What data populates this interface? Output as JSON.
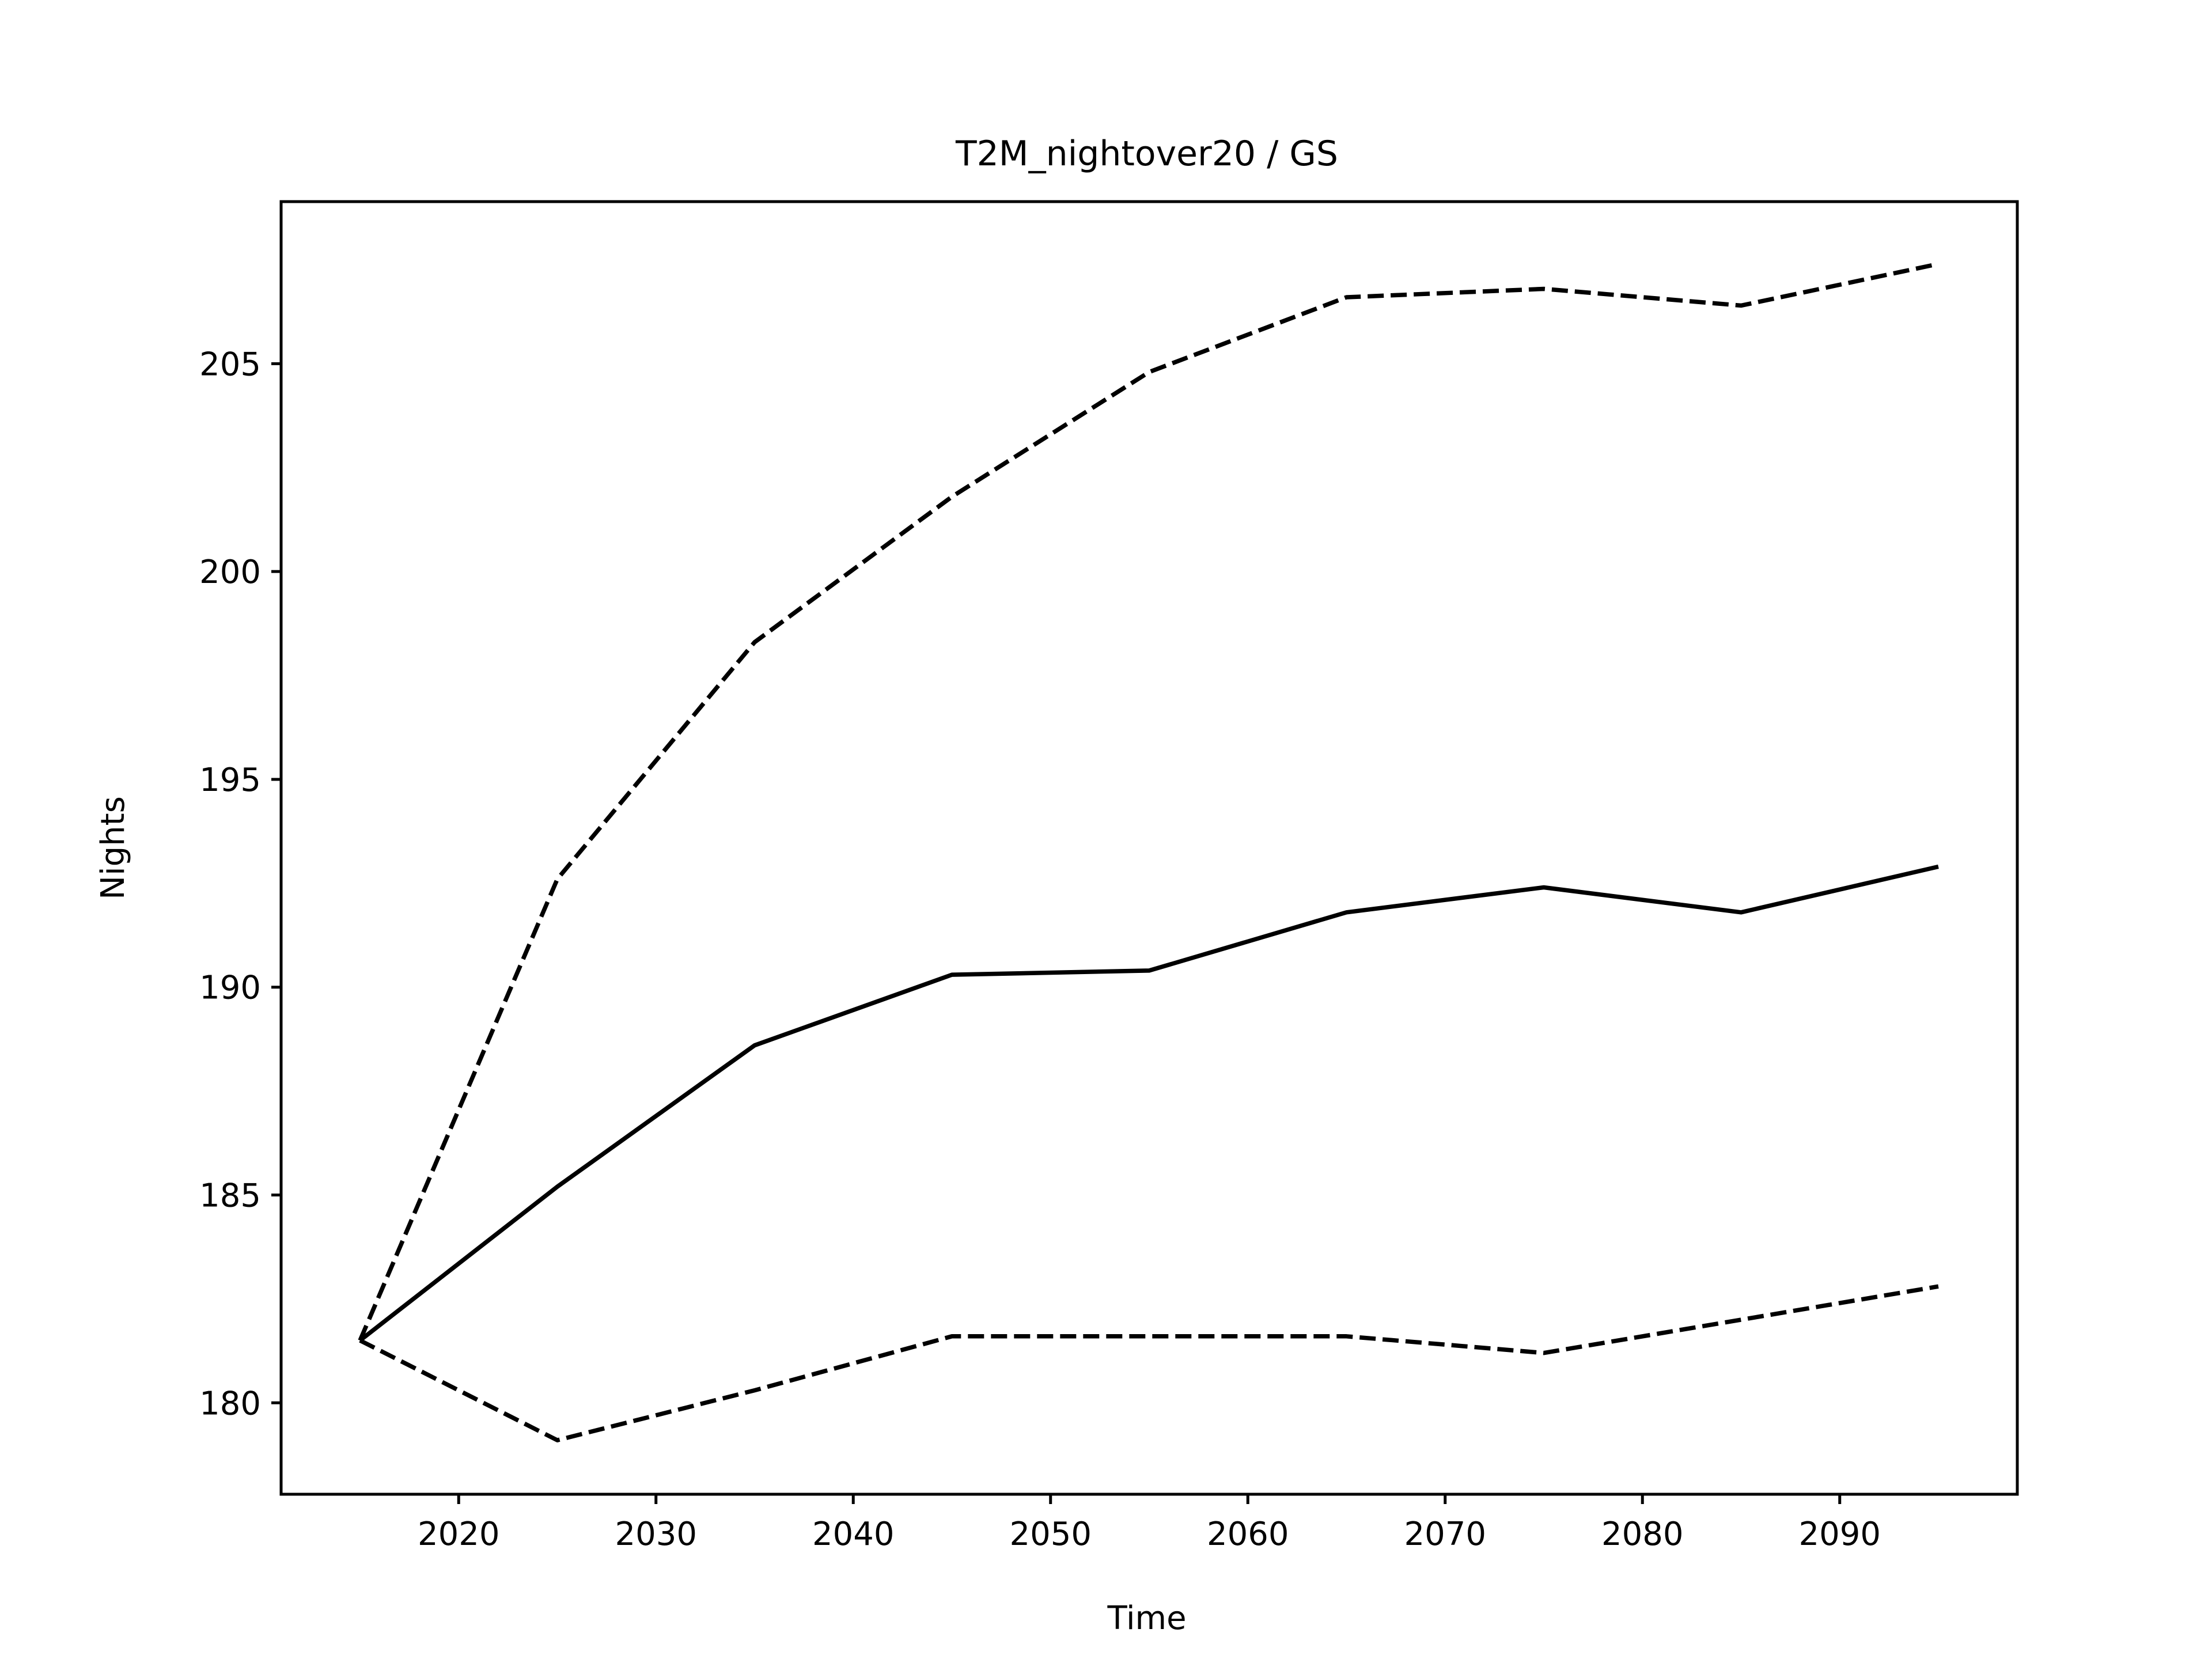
{
  "chart_data": {
    "type": "line",
    "title": "T2M_nightover20 / GS",
    "xlabel": "Time",
    "ylabel": "Nights",
    "x": [
      2015,
      2025,
      2035,
      2045,
      2055,
      2065,
      2075,
      2085,
      2095
    ],
    "xlim": [
      2011,
      2099
    ],
    "ylim": [
      177.8,
      208.9
    ],
    "xticks": [
      2020,
      2030,
      2040,
      2050,
      2060,
      2070,
      2080,
      2090
    ],
    "yticks": [
      180,
      185,
      190,
      195,
      200,
      205
    ],
    "grid": false,
    "legend": false,
    "series": [
      {
        "style": "solid",
        "color": "#000000",
        "values": [
          181.5,
          185.2,
          188.6,
          190.3,
          190.4,
          191.8,
          192.4,
          191.8,
          192.9
        ]
      },
      {
        "style": "dashed",
        "color": "#000000",
        "values": [
          181.5,
          192.6,
          198.3,
          201.8,
          204.8,
          206.6,
          206.8,
          206.4,
          207.4
        ]
      },
      {
        "style": "dashed",
        "color": "#000000",
        "values": [
          181.5,
          179.1,
          180.3,
          181.6,
          181.6,
          181.6,
          181.2,
          182.0,
          182.8
        ]
      }
    ]
  }
}
